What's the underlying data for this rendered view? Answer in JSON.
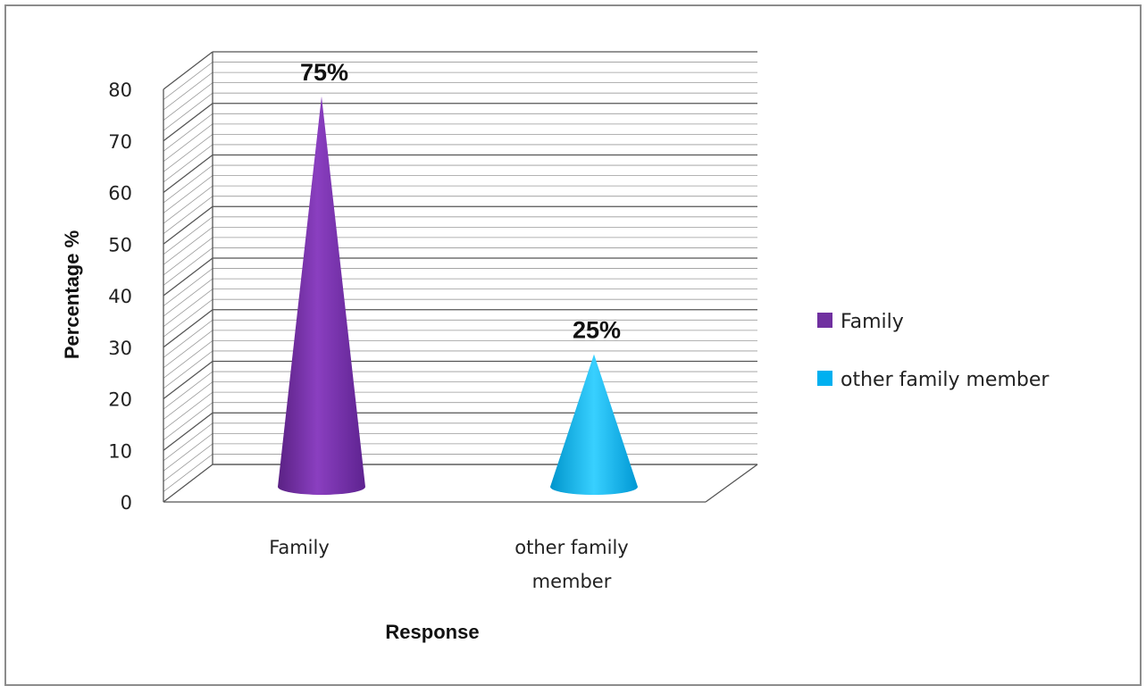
{
  "chart_data": {
    "type": "bar",
    "style": "3d-cone",
    "categories": [
      "Family",
      "other family member"
    ],
    "category_lines": [
      [
        "Family"
      ],
      [
        "other family",
        "member"
      ]
    ],
    "series": [
      {
        "name": "Family",
        "color": "#7030a0",
        "values": [
          75,
          null
        ]
      },
      {
        "name": "other family member",
        "color": "#00b0f0",
        "values": [
          null,
          25
        ]
      }
    ],
    "data_labels": [
      "75%",
      "25%"
    ],
    "xlabel": "Response",
    "ylabel": "Percentage %",
    "ylim": [
      0,
      80
    ],
    "yticks": [
      0,
      10,
      20,
      30,
      40,
      50,
      60,
      70,
      80
    ],
    "grid": true,
    "legend": "right",
    "legend_entries": [
      {
        "label": "Family",
        "color": "#7030a0"
      },
      {
        "label": "other family member",
        "color": "#00b0f0"
      }
    ]
  }
}
